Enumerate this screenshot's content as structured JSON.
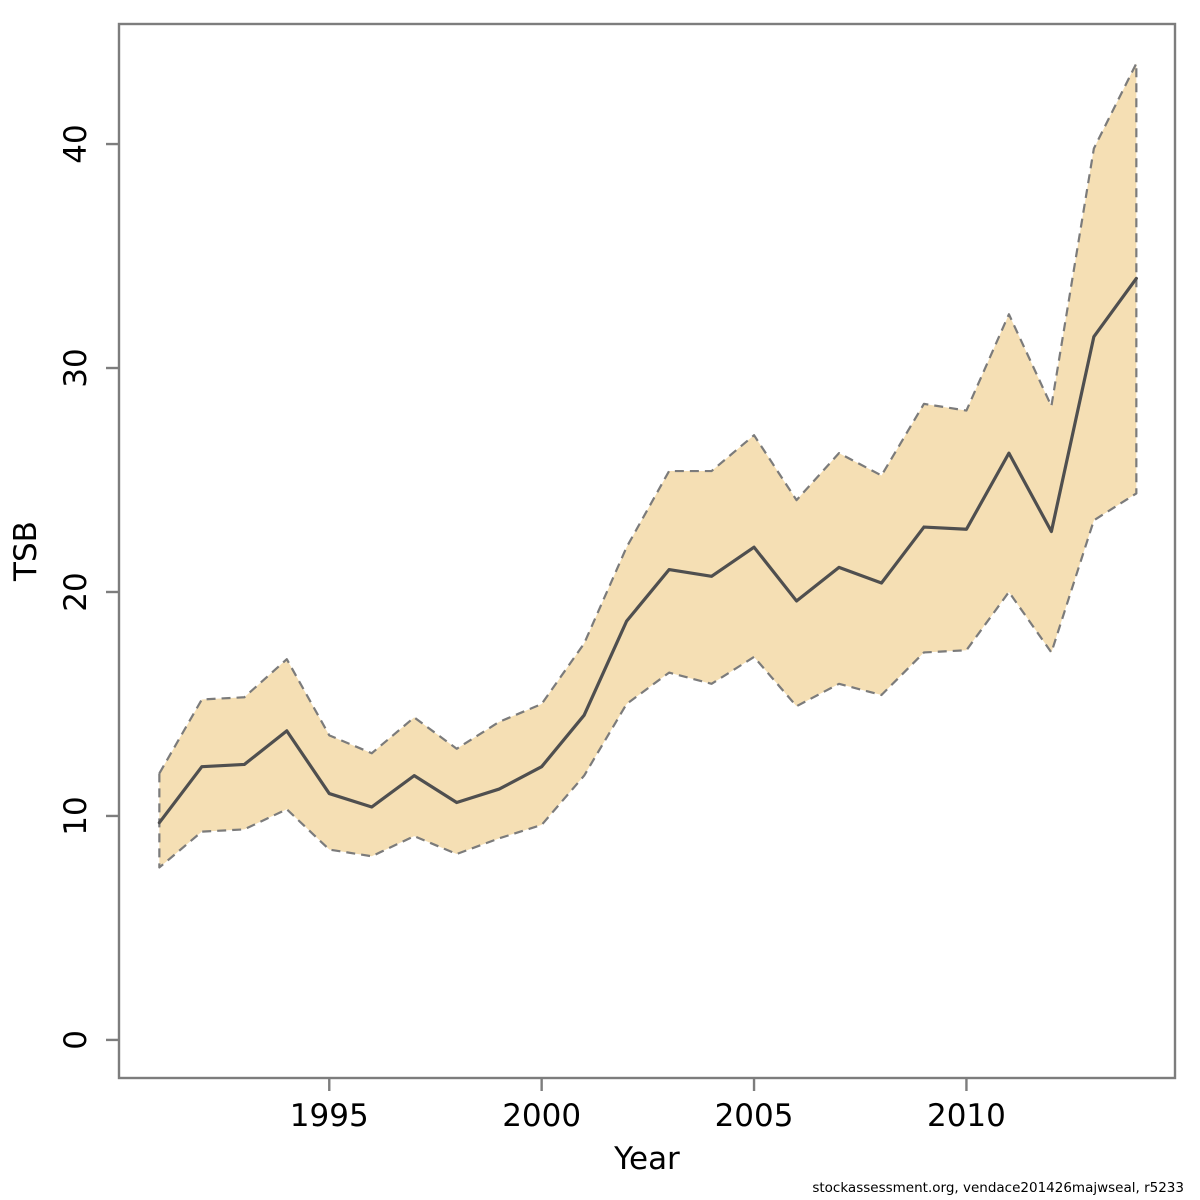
{
  "caption": "stockassessment.org, vendace201426majwseal, r5233",
  "colors": {
    "band_fill": "#f5dfb4",
    "band_edge": "#7b7b7b",
    "line": "#4f4f4f",
    "axis": "#7d7d7d",
    "text": "#000000",
    "background": "#ffffff"
  },
  "chart_data": {
    "type": "line",
    "title": "",
    "xlabel": "Year",
    "ylabel": "TSB",
    "grid": false,
    "legend": null,
    "xlim": [
      1990.05,
      2014.91
    ],
    "ylim": [
      -1.7,
      45.36
    ],
    "xticks": [
      1995,
      2000,
      2005,
      2010
    ],
    "yticks": [
      0,
      10,
      20,
      30,
      40
    ],
    "x": [
      1991,
      1992,
      1993,
      1994,
      1995,
      1996,
      1997,
      1998,
      1999,
      2000,
      2001,
      2002,
      2003,
      2004,
      2005,
      2006,
      2007,
      2008,
      2009,
      2010,
      2011,
      2012,
      2013,
      2014
    ],
    "series": [
      {
        "name": "TSB estimate",
        "style": "solid",
        "values": [
          9.7,
          12.2,
          12.3,
          13.8,
          11.0,
          10.4,
          11.8,
          10.6,
          11.2,
          12.2,
          14.5,
          18.7,
          21.0,
          20.7,
          22.0,
          19.6,
          21.1,
          20.4,
          22.9,
          22.8,
          26.2,
          22.7,
          31.4,
          34.0
        ]
      },
      {
        "name": "lower confidence bound",
        "style": "dashed",
        "values": [
          7.7,
          9.3,
          9.4,
          10.3,
          8.5,
          8.2,
          9.1,
          8.3,
          9.0,
          9.6,
          11.8,
          15.0,
          16.4,
          15.9,
          17.1,
          14.9,
          15.9,
          15.4,
          17.3,
          17.4,
          20.0,
          17.3,
          23.2,
          24.4
        ]
      },
      {
        "name": "upper confidence bound",
        "style": "dashed",
        "values": [
          11.9,
          15.2,
          15.3,
          17.0,
          13.6,
          12.8,
          14.4,
          13.0,
          14.2,
          15.0,
          17.7,
          22.0,
          25.4,
          25.4,
          27.0,
          24.1,
          26.2,
          25.2,
          28.4,
          28.1,
          32.4,
          28.3,
          39.8,
          43.6
        ]
      }
    ]
  }
}
